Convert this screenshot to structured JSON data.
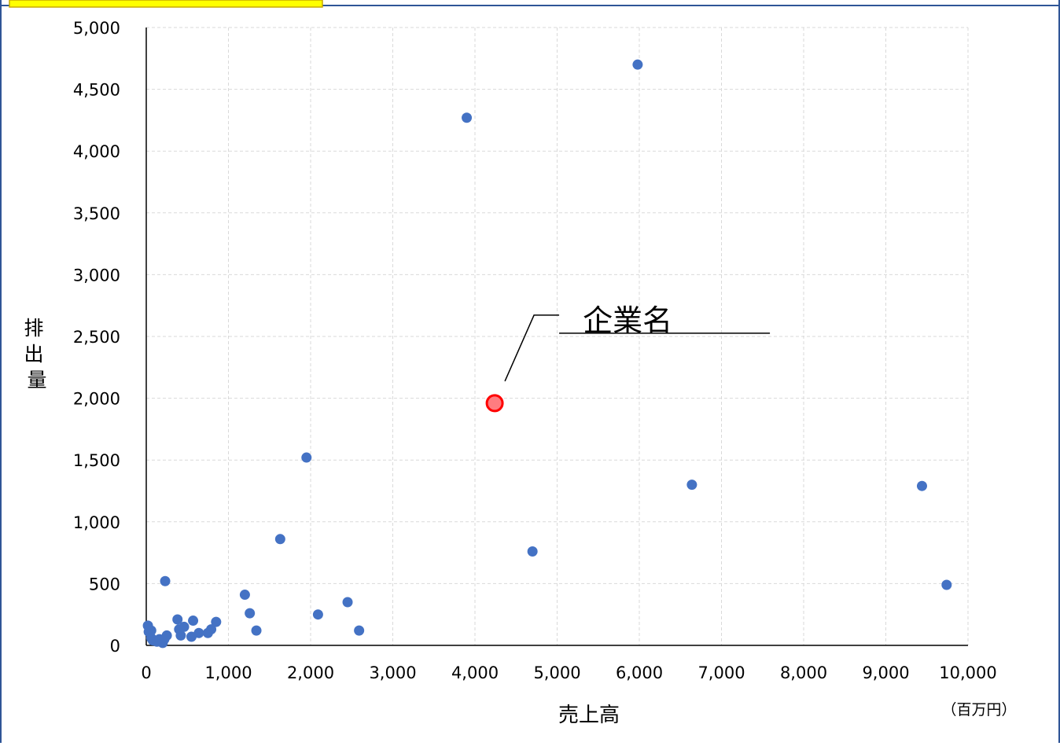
{
  "chart_data": {
    "type": "scatter",
    "title": "",
    "xlabel": "売上高",
    "ylabel": "排出量",
    "x_unit": "（百万円）",
    "xlim": [
      0,
      10000
    ],
    "ylim": [
      0,
      5000
    ],
    "grid": true,
    "x_ticks": [
      0,
      1000,
      2000,
      3000,
      4000,
      5000,
      6000,
      7000,
      8000,
      9000,
      10000
    ],
    "y_ticks": [
      0,
      500,
      1000,
      1500,
      2000,
      2500,
      3000,
      3500,
      4000,
      4500,
      5000
    ],
    "x_tick_labels": [
      "0",
      "1,000",
      "2,000",
      "3,000",
      "4,000",
      "5,000",
      "6,000",
      "7,000",
      "8,000",
      "9,000",
      "10,000"
    ],
    "y_tick_labels": [
      "0",
      "500",
      "1,000",
      "1,500",
      "2,000",
      "2,500",
      "3,000",
      "3,500",
      "4,000",
      "4,500",
      "5,000"
    ],
    "series": [
      {
        "color": "#4472C4",
        "points": [
          [
            20,
            160
          ],
          [
            30,
            110
          ],
          [
            60,
            120
          ],
          [
            60,
            60
          ],
          [
            80,
            40
          ],
          [
            100,
            40
          ],
          [
            130,
            30
          ],
          [
            160,
            50
          ],
          [
            200,
            20
          ],
          [
            220,
            50
          ],
          [
            250,
            80
          ],
          [
            230,
            520
          ],
          [
            380,
            210
          ],
          [
            400,
            130
          ],
          [
            420,
            80
          ],
          [
            460,
            150
          ],
          [
            550,
            70
          ],
          [
            570,
            200
          ],
          [
            640,
            100
          ],
          [
            750,
            100
          ],
          [
            790,
            130
          ],
          [
            850,
            190
          ],
          [
            1200,
            410
          ],
          [
            1260,
            260
          ],
          [
            1340,
            120
          ],
          [
            1630,
            860
          ],
          [
            1950,
            1520
          ],
          [
            2090,
            250
          ],
          [
            2450,
            350
          ],
          [
            2590,
            120
          ],
          [
            3900,
            4270
          ],
          [
            4700,
            760
          ],
          [
            5980,
            4700
          ],
          [
            6640,
            1300
          ],
          [
            9440,
            1290
          ],
          [
            9740,
            490
          ]
        ]
      }
    ],
    "highlight": {
      "label": "企業名",
      "point": [
        4240,
        1960
      ],
      "color": "#FF7C80",
      "stroke": "#FF0000"
    }
  },
  "header": {
    "accent": "#FFFF00",
    "border": "#2F5597"
  }
}
